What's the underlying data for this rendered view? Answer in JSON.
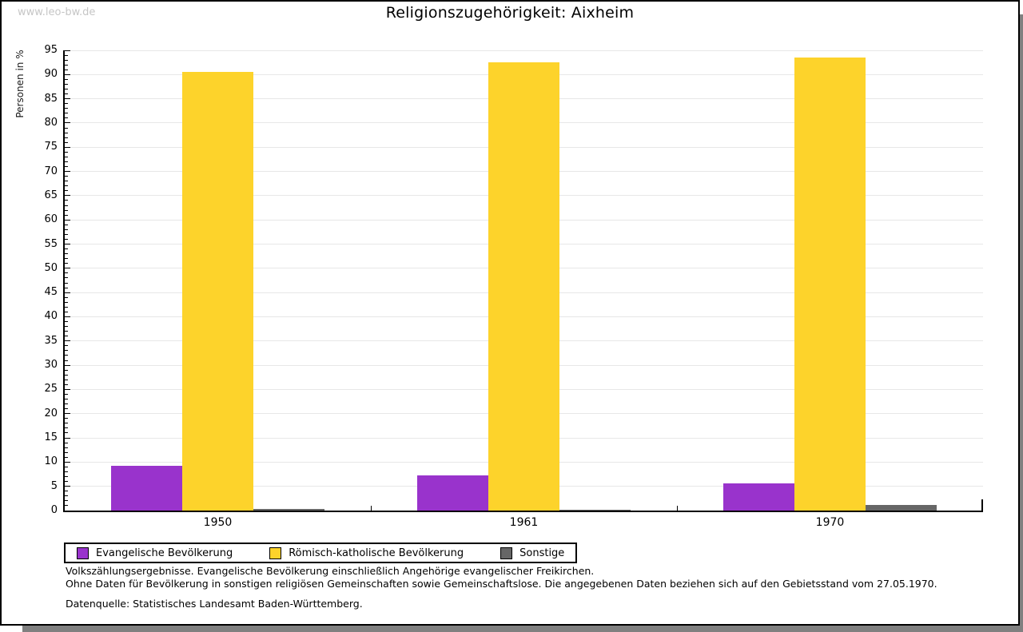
{
  "watermark": "www.leo-bw.de",
  "title": "Religionszugehörigkeit: Aixheim",
  "chart_data": {
    "type": "bar",
    "title": "Religionszugehörigkeit: Aixheim",
    "categories": [
      "1950",
      "1961",
      "1970"
    ],
    "series": [
      {
        "name": "Evangelische Bevölkerung",
        "slug": "evangelische",
        "color": "#9933cc",
        "values": [
          9.2,
          7.3,
          5.6
        ]
      },
      {
        "name": "Römisch-katholische Bevölkerung",
        "slug": "katholische",
        "color": "#fdd32b",
        "values": [
          90.5,
          92.5,
          93.5
        ]
      },
      {
        "name": "Sonstige",
        "slug": "sonstige",
        "color": "#666666",
        "values": [
          0.4,
          0.2,
          1.2
        ]
      }
    ],
    "xlabel": "",
    "ylabel": "Personen in %",
    "ylim": [
      0,
      95
    ],
    "y_major_step": 5,
    "y_minor_step": 1,
    "grid": true,
    "legend_position": "bottom"
  },
  "legend": {
    "items": [
      {
        "label": "Evangelische Bevölkerung",
        "color": "#9933cc"
      },
      {
        "label": "Römisch-katholische Bevölkerung",
        "color": "#fdd32b"
      },
      {
        "label": "Sonstige",
        "color": "#666666"
      }
    ]
  },
  "notes": {
    "line1": "Volkszählungsergebnisse. Evangelische Bevölkerung einschließlich Angehörige evangelischer Freikirchen.",
    "line2": "Ohne Daten für Bevölkerung in sonstigen religiösen Gemeinschaften sowie Gemeinschaftslose. Die angegebenen Daten beziehen sich auf den Gebietsstand vom 27.05.1970.",
    "source": "Datenquelle: Statistisches Landesamt Baden-Württemberg."
  },
  "colors": {
    "gridline": "#e7e7e7",
    "watermark": "#c6c6c6",
    "frame_shadow": "#808080",
    "axis": "#000000"
  }
}
